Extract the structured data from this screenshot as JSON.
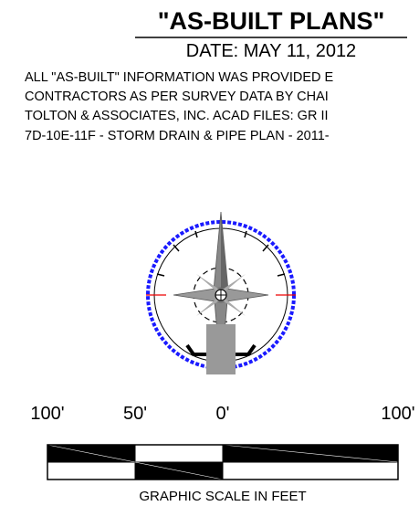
{
  "header": {
    "title": "\"AS-BUILT PLANS\"",
    "date": "DATE: MAY 11, 2012"
  },
  "notes": [
    "ALL \"AS-BUILT\" INFORMATION WAS PROVIDED E",
    "CONTRACTORS AS PER SURVEY DATA BY CHAI",
    "TOLTON & ASSOCIATES, INC. ACAD FILES: GR II",
    "7D-10E-11F - STORM DRAIN & PIPE PLAN - 2011-"
  ],
  "scale": {
    "labels": [
      "100'",
      "50'",
      "0'",
      "100'"
    ],
    "caption": "GRAPHIC SCALE IN FEET"
  }
}
